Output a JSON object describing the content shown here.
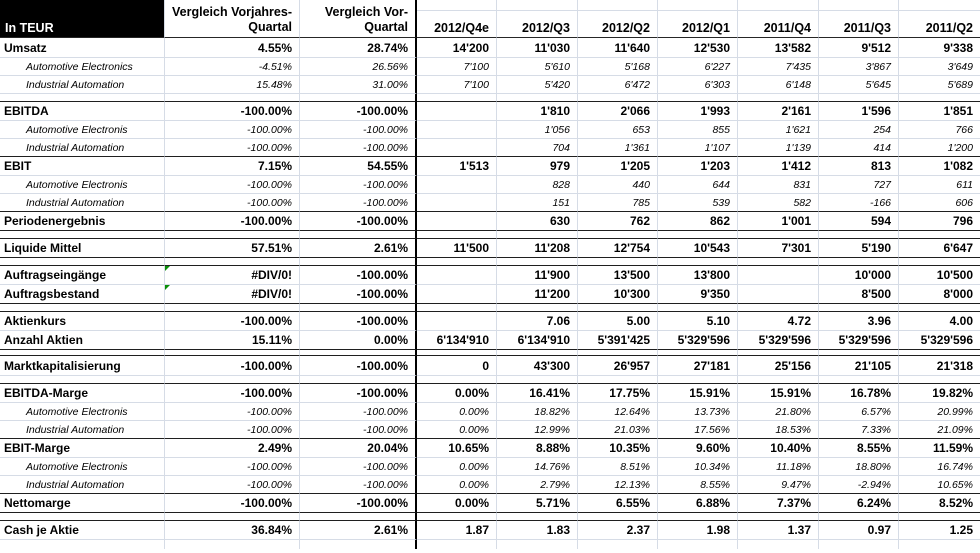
{
  "title": "Quarterly financial comparison table (Excel)",
  "colors": {
    "gridline": "#d6dce6",
    "dark_border": "#1f1f1f",
    "header_bg": "#000000",
    "header_fg": "#ffffff",
    "error_green": "#0a8f08"
  },
  "header": {
    "corner_label": "In TEUR",
    "compare_cols": [
      {
        "line1": "Vergleich Vorjahres-",
        "line2": "Quartal"
      },
      {
        "line1": "Vergleich Vor-",
        "line2": "Quartal"
      }
    ],
    "quarters": [
      "2012/Q4e",
      "2012/Q3",
      "2012/Q2",
      "2012/Q1",
      "2011/Q4",
      "2011/Q3",
      "2011/Q2"
    ]
  },
  "rows": [
    {
      "label": "Umsatz",
      "style": "bold",
      "top": "none",
      "cells": [
        "4.55%",
        "28.74%",
        "14'200",
        "11'030",
        "11'640",
        "12'530",
        "13'582",
        "9'512",
        "9'338"
      ]
    },
    {
      "label": "Automotive Electronics",
      "style": "sub",
      "top": "light",
      "cells": [
        "-4.51%",
        "26.56%",
        "7'100",
        "5'610",
        "5'168",
        "6'227",
        "7'435",
        "3'867",
        "3'649"
      ]
    },
    {
      "label": "Industrial Automation",
      "style": "sub",
      "top": "light",
      "cells": [
        "15.48%",
        "31.00%",
        "7'100",
        "5'420",
        "6'472",
        "6'303",
        "6'148",
        "5'645",
        "5'689"
      ]
    },
    {
      "style": "spacer",
      "top": "light"
    },
    {
      "label": "EBITDA",
      "style": "bold",
      "top": "dark",
      "cells": [
        "-100.00%",
        "-100.00%",
        "",
        "1'810",
        "2'066",
        "1'993",
        "2'161",
        "1'596",
        "1'851"
      ]
    },
    {
      "label": "Automotive Electronis",
      "style": "sub",
      "top": "light",
      "cells": [
        "-100.00%",
        "-100.00%",
        "",
        "1'056",
        "653",
        "855",
        "1'621",
        "254",
        "766"
      ]
    },
    {
      "label": "Industrial Automation",
      "style": "sub",
      "top": "light",
      "cells": [
        "-100.00%",
        "-100.00%",
        "",
        "704",
        "1'361",
        "1'107",
        "1'139",
        "414",
        "1'200"
      ]
    },
    {
      "label": "EBIT",
      "style": "bold",
      "top": "dark",
      "cells": [
        "7.15%",
        "54.55%",
        "1'513",
        "979",
        "1'205",
        "1'203",
        "1'412",
        "813",
        "1'082"
      ]
    },
    {
      "label": "Automotive Electronis",
      "style": "sub",
      "top": "light",
      "cells": [
        "-100.00%",
        "-100.00%",
        "",
        "828",
        "440",
        "644",
        "831",
        "727",
        "611"
      ]
    },
    {
      "label": "Industrial Automation",
      "style": "sub",
      "top": "light",
      "cells": [
        "-100.00%",
        "-100.00%",
        "",
        "151",
        "785",
        "539",
        "582",
        "-166",
        "606"
      ]
    },
    {
      "label": "Periodenergebnis",
      "style": "bold",
      "top": "dark",
      "cells": [
        "-100.00%",
        "-100.00%",
        "",
        "630",
        "762",
        "862",
        "1'001",
        "594",
        "796"
      ]
    },
    {
      "style": "spacer",
      "top": "dark"
    },
    {
      "label": "Liquide Mittel",
      "style": "bold",
      "top": "dark",
      "cells": [
        "57.51%",
        "2.61%",
        "11'500",
        "11'208",
        "12'754",
        "10'543",
        "7'301",
        "5'190",
        "6'647"
      ]
    },
    {
      "style": "spacer",
      "top": "dark"
    },
    {
      "label": "Auftragseingänge",
      "style": "bold",
      "top": "dark",
      "error_cols": [
        0
      ],
      "cells": [
        "#DIV/0!",
        "-100.00%",
        "",
        "11'900",
        "13'500",
        "13'800",
        "",
        "10'000",
        "10'500"
      ]
    },
    {
      "label": "Auftragsbestand",
      "style": "bold",
      "top": "light",
      "error_cols": [
        0
      ],
      "cells": [
        "#DIV/0!",
        "-100.00%",
        "",
        "11'200",
        "10'300",
        "9'350",
        "",
        "8'500",
        "8'000"
      ]
    },
    {
      "style": "spacer",
      "top": "dark"
    },
    {
      "label": "Aktienkurs",
      "style": "bold",
      "top": "dark",
      "cells": [
        "-100.00%",
        "-100.00%",
        "",
        "7.06",
        "5.00",
        "5.10",
        "4.72",
        "3.96",
        "4.00"
      ]
    },
    {
      "label": "Anzahl Aktien",
      "style": "bold",
      "top": "light",
      "cells": [
        "15.11%",
        "0.00%",
        "6'134'910",
        "6'134'910",
        "5'391'425",
        "5'329'596",
        "5'329'596",
        "5'329'596",
        "5'329'596"
      ]
    },
    {
      "style": "spacer",
      "variant": "double",
      "top": "dark",
      "bottom": "dark"
    },
    {
      "label": "Marktkapitalisierung",
      "style": "bold",
      "top": "none",
      "cells": [
        "-100.00%",
        "-100.00%",
        "0",
        "43'300",
        "26'957",
        "27'181",
        "25'156",
        "21'105",
        "21'318"
      ]
    },
    {
      "style": "spacer",
      "top": "light"
    },
    {
      "label": "EBITDA-Marge",
      "style": "bold",
      "top": "dark",
      "cells": [
        "-100.00%",
        "-100.00%",
        "0.00%",
        "16.41%",
        "17.75%",
        "15.91%",
        "15.91%",
        "16.78%",
        "19.82%"
      ]
    },
    {
      "label": "Automotive Electronis",
      "style": "sub",
      "top": "light",
      "cells": [
        "-100.00%",
        "-100.00%",
        "0.00%",
        "18.82%",
        "12.64%",
        "13.73%",
        "21.80%",
        "6.57%",
        "20.99%"
      ]
    },
    {
      "label": "Industrial Automation",
      "style": "sub",
      "top": "light",
      "cells": [
        "-100.00%",
        "-100.00%",
        "0.00%",
        "12.99%",
        "21.03%",
        "17.56%",
        "18.53%",
        "7.33%",
        "21.09%"
      ]
    },
    {
      "label": "EBIT-Marge",
      "style": "bold",
      "top": "dark",
      "cells": [
        "2.49%",
        "20.04%",
        "10.65%",
        "8.88%",
        "10.35%",
        "9.60%",
        "10.40%",
        "8.55%",
        "11.59%"
      ]
    },
    {
      "label": "Automotive Electronis",
      "style": "sub",
      "top": "light",
      "cells": [
        "-100.00%",
        "-100.00%",
        "0.00%",
        "14.76%",
        "8.51%",
        "10.34%",
        "11.18%",
        "18.80%",
        "16.74%"
      ]
    },
    {
      "label": "Industrial Automation",
      "style": "sub",
      "top": "light",
      "cells": [
        "-100.00%",
        "-100.00%",
        "0.00%",
        "2.79%",
        "12.13%",
        "8.55%",
        "9.47%",
        "-2.94%",
        "10.65%"
      ]
    },
    {
      "label": "Nettomarge",
      "style": "bold",
      "top": "dark",
      "cells": [
        "-100.00%",
        "-100.00%",
        "0.00%",
        "5.71%",
        "6.55%",
        "6.88%",
        "7.37%",
        "6.24%",
        "8.52%"
      ]
    },
    {
      "style": "spacer",
      "top": "dark"
    },
    {
      "label": "Cash je Aktie",
      "style": "bold",
      "top": "dark",
      "cells": [
        "36.84%",
        "2.61%",
        "1.87",
        "1.83",
        "2.37",
        "1.98",
        "1.37",
        "0.97",
        "1.25"
      ]
    },
    {
      "style": "end",
      "top": "light"
    }
  ]
}
